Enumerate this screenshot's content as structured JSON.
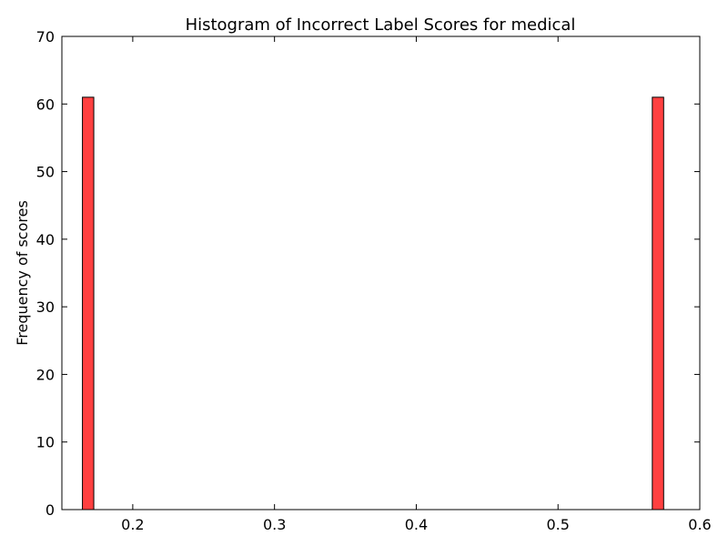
{
  "chart_data": {
    "type": "bar",
    "title": "Histogram of Incorrect Label Scores for medical",
    "xlabel": "",
    "ylabel": "Frequency of scores",
    "xlim": [
      0.15,
      0.6
    ],
    "ylim": [
      0,
      70
    ],
    "xticks": [
      0.2,
      0.3,
      0.4,
      0.5,
      0.6
    ],
    "xtick_labels": [
      "0.2",
      "0.3",
      "0.4",
      "0.5",
      "0.6"
    ],
    "yticks": [
      0,
      10,
      20,
      30,
      40,
      50,
      60,
      70
    ],
    "ytick_labels": [
      "0",
      "10",
      "20",
      "30",
      "40",
      "50",
      "60",
      "70"
    ],
    "grid": false,
    "bar_color": "#ff4040",
    "bar_edge_color": "#000000",
    "bins": [
      {
        "x_start": 0.1645,
        "x_end": 0.1725,
        "value": 61
      },
      {
        "x_start": 0.5665,
        "x_end": 0.5745,
        "value": 61
      }
    ]
  }
}
